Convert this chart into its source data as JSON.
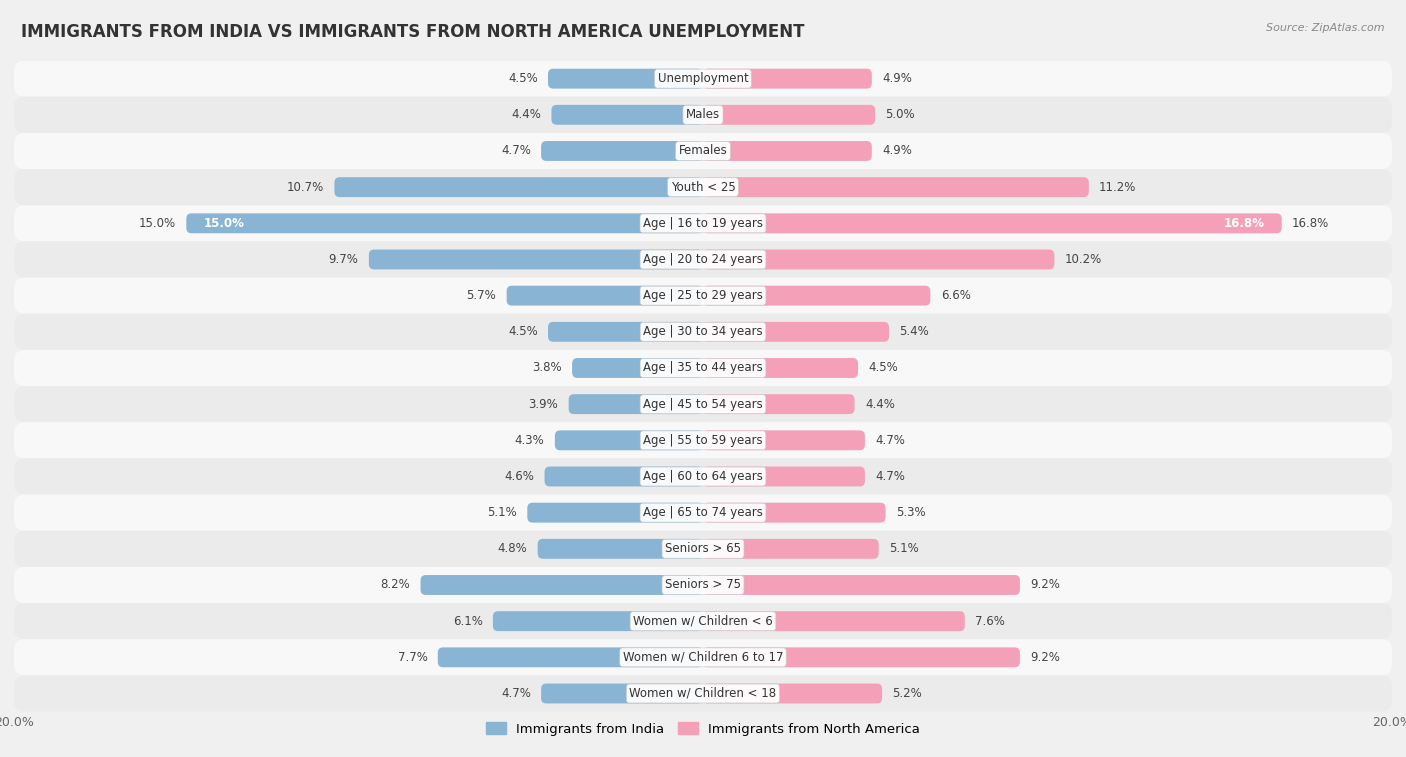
{
  "title": "IMMIGRANTS FROM INDIA VS IMMIGRANTS FROM NORTH AMERICA UNEMPLOYMENT",
  "source": "Source: ZipAtlas.com",
  "categories": [
    "Unemployment",
    "Males",
    "Females",
    "Youth < 25",
    "Age | 16 to 19 years",
    "Age | 20 to 24 years",
    "Age | 25 to 29 years",
    "Age | 30 to 34 years",
    "Age | 35 to 44 years",
    "Age | 45 to 54 years",
    "Age | 55 to 59 years",
    "Age | 60 to 64 years",
    "Age | 65 to 74 years",
    "Seniors > 65",
    "Seniors > 75",
    "Women w/ Children < 6",
    "Women w/ Children 6 to 17",
    "Women w/ Children < 18"
  ],
  "india_values": [
    4.5,
    4.4,
    4.7,
    10.7,
    15.0,
    9.7,
    5.7,
    4.5,
    3.8,
    3.9,
    4.3,
    4.6,
    5.1,
    4.8,
    8.2,
    6.1,
    7.7,
    4.7
  ],
  "north_america_values": [
    4.9,
    5.0,
    4.9,
    11.2,
    16.8,
    10.2,
    6.6,
    5.4,
    4.5,
    4.4,
    4.7,
    4.7,
    5.3,
    5.1,
    9.2,
    7.6,
    9.2,
    5.2
  ],
  "india_color": "#8ab4d4",
  "india_color_dark": "#5a8fc0",
  "north_america_color": "#f4a0b8",
  "north_america_color_dark": "#e05080",
  "row_color_odd": "#f5f5f5",
  "row_color_even": "#e8e8e8",
  "background_color": "#f0f0f0",
  "xlim": 20.0,
  "bar_height": 0.55,
  "title_fontsize": 12,
  "label_fontsize": 8.5,
  "value_fontsize": 8.5,
  "tick_fontsize": 9,
  "legend_labels": [
    "Immigrants from India",
    "Immigrants from North America"
  ]
}
